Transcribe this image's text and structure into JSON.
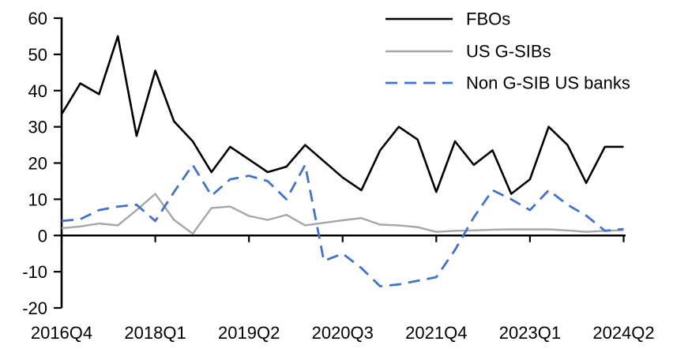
{
  "colors": {
    "background": "#ffffff",
    "axis": "#000000",
    "text": "#000000",
    "fbo_black": "#000000",
    "gsib_gray": "#a6a6a6",
    "nongsib_blue": "#4472c4"
  },
  "chart_data": {
    "type": "line",
    "title": "",
    "xlabel": "",
    "ylabel": "",
    "grid": false,
    "legend_position": "top-right",
    "ylim": [
      -20,
      60
    ],
    "y_ticks": [
      60,
      50,
      40,
      30,
      20,
      10,
      0,
      -10,
      -20
    ],
    "x_label_ticks": [
      "2016Q4",
      "2018Q1",
      "2019Q2",
      "2020Q3",
      "2021Q4",
      "2023Q1",
      "2024Q2"
    ],
    "x_tick_indices": [
      0,
      5,
      10,
      15,
      20,
      25,
      30
    ],
    "x": [
      "2016Q4",
      "2017Q1",
      "2017Q2",
      "2017Q3",
      "2017Q4",
      "2018Q1",
      "2018Q2",
      "2018Q3",
      "2018Q4",
      "2019Q1",
      "2019Q2",
      "2019Q3",
      "2019Q4",
      "2020Q1",
      "2020Q2",
      "2020Q3",
      "2020Q4",
      "2021Q1",
      "2021Q2",
      "2021Q3",
      "2021Q4",
      "2022Q1",
      "2022Q2",
      "2022Q3",
      "2022Q4",
      "2023Q1",
      "2023Q2",
      "2023Q3",
      "2023Q4",
      "2024Q1",
      "2024Q2"
    ],
    "series": [
      {
        "name": "FBOs",
        "color": "#000000",
        "dashed": false,
        "width": 2.6,
        "values": [
          33.5,
          42,
          39,
          55,
          27.5,
          45.5,
          31.5,
          26,
          17.5,
          24.5,
          21,
          17.5,
          19,
          25,
          20.5,
          16,
          12.5,
          23.5,
          30,
          26.5,
          12,
          26,
          19.5,
          23.5,
          11.5,
          15.5,
          30,
          25,
          14.5,
          24.5,
          24.5
        ]
      },
      {
        "name": "US G-SIBs",
        "color": "#a6a6a6",
        "dashed": false,
        "width": 2.4,
        "values": [
          2,
          2.5,
          3.3,
          2.8,
          7,
          11.5,
          4.3,
          0.5,
          7.6,
          8,
          5.4,
          4.3,
          5.7,
          2.8,
          3.5,
          4.2,
          4.8,
          3,
          2.8,
          2.3,
          1,
          1.3,
          1.4,
          1.6,
          1.7,
          1.7,
          1.7,
          1.4,
          1,
          1.3,
          1.5
        ]
      },
      {
        "name": "Non G-SIB US banks",
        "color": "#4472c4",
        "dashed": true,
        "width": 2.8,
        "values": [
          4,
          4.5,
          7,
          8,
          8.5,
          4,
          12,
          19.5,
          11,
          15.5,
          16.5,
          15,
          10,
          19.5,
          -7,
          -5,
          -9,
          -14,
          -13.5,
          -12.5,
          -11.5,
          -4,
          5,
          12.5,
          10,
          7,
          12.5,
          8.5,
          5.5,
          1.3,
          1.8
        ]
      }
    ]
  }
}
